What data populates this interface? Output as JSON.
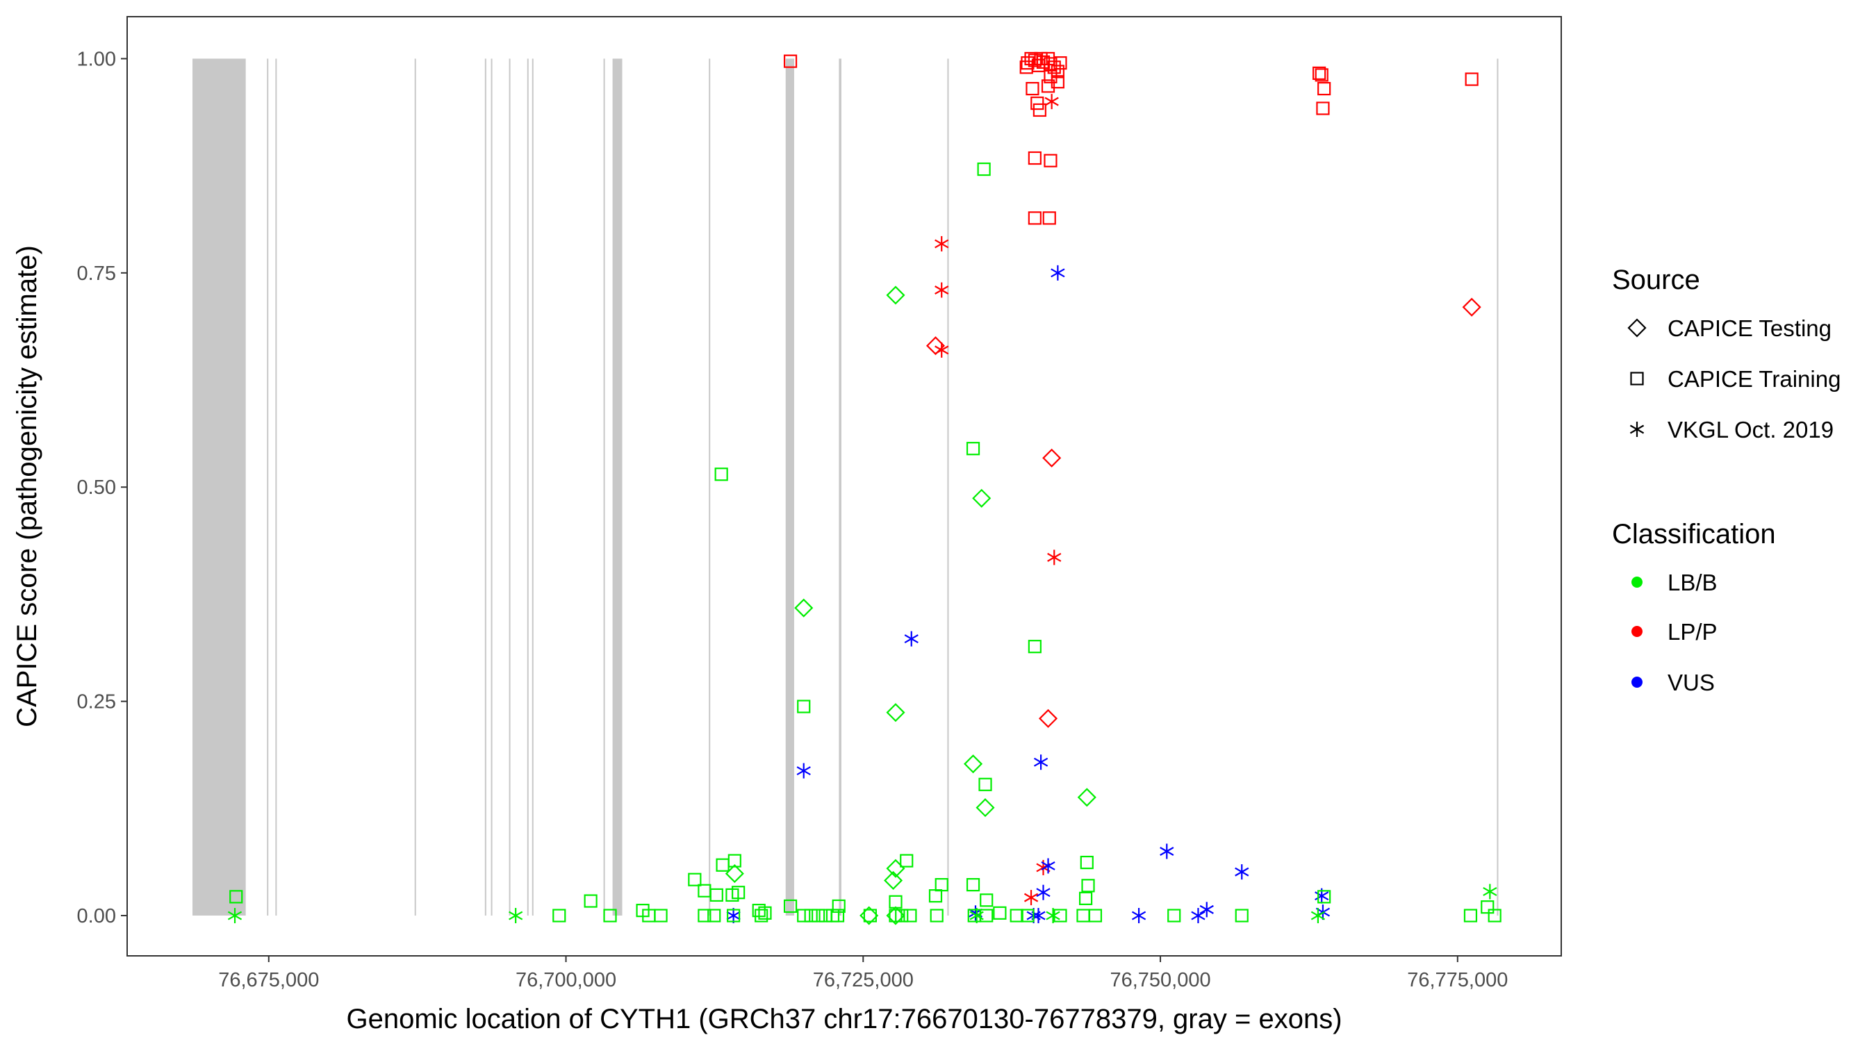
{
  "chart_data": {
    "type": "scatter",
    "title": "",
    "xlabel": "Genomic location of CYTH1 (GRCh37 chr17:76670130-76778379, gray = exons)",
    "ylabel": "CAPICE score (pathogenicity estimate)",
    "xlim": [
      76663090,
      76783720
    ],
    "ylim": [
      -0.047,
      1.049
    ],
    "grid": false,
    "x_ticks": [
      76675000,
      76700000,
      76725000,
      76750000,
      76775000
    ],
    "x_tick_labels": [
      "76,675,000",
      "76,700,000",
      "76,725,000",
      "76,750,000",
      "76,775,000"
    ],
    "y_ticks": [
      0,
      0.25,
      0.5,
      0.75,
      1.0
    ],
    "y_tick_labels": [
      "0.00",
      "0.25",
      "0.50",
      "0.75",
      "1.00"
    ],
    "exons": [
      [
        76668585,
        76673065
      ],
      [
        76674850,
        76674950
      ],
      [
        76675560,
        76675660
      ],
      [
        76687270,
        76687370
      ],
      [
        76693180,
        76693280
      ],
      [
        76693690,
        76693790
      ],
      [
        76695210,
        76695310
      ],
      [
        76696740,
        76696840
      ],
      [
        76697150,
        76697250
      ],
      [
        76703160,
        76703260
      ],
      [
        76703920,
        76704734
      ],
      [
        76712020,
        76712120
      ],
      [
        76718481,
        76719194
      ],
      [
        76722962,
        76723166
      ],
      [
        76732080,
        76732180
      ],
      [
        76778310,
        76778410
      ]
    ],
    "exon_color": "#c8c8c8",
    "legend": {
      "placement": "right",
      "source_title": "Source",
      "source_items": [
        {
          "key": "T",
          "label": "CAPICE Testing",
          "shape": "diamond"
        },
        {
          "key": "R",
          "label": "CAPICE Training",
          "shape": "square"
        },
        {
          "key": "V",
          "label": "VKGL Oct. 2019",
          "shape": "asterisk"
        }
      ],
      "class_title": "Classification",
      "class_items": [
        {
          "key": "LB/B",
          "label": "LB/B",
          "color": "#00ee00"
        },
        {
          "key": "LP/P",
          "label": "LP/P",
          "color": "#ff0000"
        },
        {
          "key": "VUS",
          "label": "VUS",
          "color": "#0000ff"
        }
      ]
    },
    "points": [
      [
        76718880,
        0.997,
        "R",
        "LP/P"
      ],
      [
        76738730,
        0.99,
        "R",
        "LP/P"
      ],
      [
        76738830,
        0.995,
        "R",
        "LP/P"
      ],
      [
        76739130,
        1.0,
        "R",
        "LP/P"
      ],
      [
        76739440,
        0.998,
        "R",
        "LP/P"
      ],
      [
        76739740,
        0.992,
        "R",
        "LP/P"
      ],
      [
        76739950,
        1.0,
        "R",
        "LP/P"
      ],
      [
        76740150,
        0.996,
        "R",
        "LP/P"
      ],
      [
        76740560,
        1.0,
        "R",
        "LP/P"
      ],
      [
        76740760,
        0.994,
        "R",
        "LP/P"
      ],
      [
        76741070,
        0.99,
        "R",
        "LP/P"
      ],
      [
        76741370,
        0.985,
        "R",
        "LP/P"
      ],
      [
        76741580,
        0.995,
        "R",
        "LP/P"
      ],
      [
        76739240,
        0.965,
        "R",
        "LP/P"
      ],
      [
        76739640,
        0.948,
        "R",
        "LP/P"
      ],
      [
        76739850,
        0.94,
        "R",
        "LP/P"
      ],
      [
        76740560,
        0.968,
        "R",
        "LP/P"
      ],
      [
        76740760,
        0.979,
        "R",
        "LP/P"
      ],
      [
        76741370,
        0.973,
        "R",
        "LP/P"
      ],
      [
        76763360,
        0.983,
        "R",
        "LP/P"
      ],
      [
        76763570,
        0.981,
        "R",
        "LP/P"
      ],
      [
        76763770,
        0.965,
        "R",
        "LP/P"
      ],
      [
        76763670,
        0.942,
        "R",
        "LP/P"
      ],
      [
        76776190,
        0.976,
        "R",
        "LP/P"
      ],
      [
        76739440,
        0.884,
        "R",
        "LP/P"
      ],
      [
        76740760,
        0.881,
        "R",
        "LP/P"
      ],
      [
        76739440,
        0.814,
        "R",
        "LP/P"
      ],
      [
        76740660,
        0.814,
        "R",
        "LP/P"
      ],
      [
        76740860,
        0.95,
        "V",
        "LP/P"
      ],
      [
        76731600,
        0.784,
        "V",
        "LP/P"
      ],
      [
        76731600,
        0.73,
        "V",
        "LP/P"
      ],
      [
        76731600,
        0.66,
        "V",
        "LP/P"
      ],
      [
        76741070,
        0.418,
        "V",
        "LP/P"
      ],
      [
        76740150,
        0.056,
        "V",
        "LP/P"
      ],
      [
        76739130,
        0.021,
        "V",
        "LP/P"
      ],
      [
        76731090,
        0.665,
        "T",
        "LP/P"
      ],
      [
        76740860,
        0.534,
        "T",
        "LP/P"
      ],
      [
        76776190,
        0.71,
        "T",
        "LP/P"
      ],
      [
        76740560,
        0.23,
        "T",
        "LP/P"
      ],
      [
        76741370,
        0.75,
        "V",
        "VUS"
      ],
      [
        76729060,
        0.323,
        "V",
        "VUS"
      ],
      [
        76720000,
        0.169,
        "V",
        "VUS"
      ],
      [
        76739950,
        0.179,
        "V",
        "VUS"
      ],
      [
        76740560,
        0.058,
        "V",
        "VUS"
      ],
      [
        76750540,
        0.075,
        "V",
        "VUS"
      ],
      [
        76756850,
        0.051,
        "V",
        "VUS"
      ],
      [
        76740150,
        0.027,
        "V",
        "VUS"
      ],
      [
        76763570,
        0.023,
        "V",
        "VUS"
      ],
      [
        76714090,
        0.0,
        "V",
        "VUS"
      ],
      [
        76734450,
        0.003,
        "V",
        "VUS"
      ],
      [
        76739340,
        0.0,
        "V",
        "VUS"
      ],
      [
        76739740,
        0.0,
        "V",
        "VUS"
      ],
      [
        76748190,
        0.0,
        "V",
        "VUS"
      ],
      [
        76753180,
        0.0,
        "V",
        "VUS"
      ],
      [
        76753900,
        0.007,
        "V",
        "VUS"
      ],
      [
        76763670,
        0.004,
        "V",
        "VUS"
      ],
      [
        76735160,
        0.871,
        "R",
        "LB/B"
      ],
      [
        76734250,
        0.545,
        "R",
        "LB/B"
      ],
      [
        76713070,
        0.515,
        "R",
        "LB/B"
      ],
      [
        76739440,
        0.314,
        "R",
        "LB/B"
      ],
      [
        76720000,
        0.244,
        "R",
        "LB/B"
      ],
      [
        76735270,
        0.153,
        "R",
        "LB/B"
      ],
      [
        76728650,
        0.064,
        "R",
        "LB/B"
      ],
      [
        76714190,
        0.064,
        "R",
        "LB/B"
      ],
      [
        76713180,
        0.059,
        "R",
        "LB/B"
      ],
      [
        76743820,
        0.062,
        "R",
        "LB/B"
      ],
      [
        76710830,
        0.042,
        "R",
        "LB/B"
      ],
      [
        76711650,
        0.029,
        "R",
        "LB/B"
      ],
      [
        76712670,
        0.024,
        "R",
        "LB/B"
      ],
      [
        76713990,
        0.024,
        "R",
        "LB/B"
      ],
      [
        76714500,
        0.027,
        "R",
        "LB/B"
      ],
      [
        76731600,
        0.036,
        "R",
        "LB/B"
      ],
      [
        76734250,
        0.036,
        "R",
        "LB/B"
      ],
      [
        76743920,
        0.035,
        "R",
        "LB/B"
      ],
      [
        76672250,
        0.022,
        "R",
        "LB/B"
      ],
      [
        76702080,
        0.017,
        "R",
        "LB/B"
      ],
      [
        76706460,
        0.006,
        "R",
        "LB/B"
      ],
      [
        76722950,
        0.011,
        "R",
        "LB/B"
      ],
      [
        76718880,
        0.011,
        "R",
        "LB/B"
      ],
      [
        76716230,
        0.006,
        "R",
        "LB/B"
      ],
      [
        76716740,
        0.003,
        "R",
        "LB/B"
      ],
      [
        76727730,
        0.016,
        "R",
        "LB/B"
      ],
      [
        76731090,
        0.023,
        "R",
        "LB/B"
      ],
      [
        76735370,
        0.018,
        "R",
        "LB/B"
      ],
      [
        76743720,
        0.02,
        "R",
        "LB/B"
      ],
      [
        76699430,
        0.0,
        "R",
        "LB/B"
      ],
      [
        76703710,
        0.0,
        "R",
        "LB/B"
      ],
      [
        76706970,
        0.0,
        "R",
        "LB/B"
      ],
      [
        76707980,
        0.0,
        "R",
        "LB/B"
      ],
      [
        76711650,
        0.0,
        "R",
        "LB/B"
      ],
      [
        76712460,
        0.0,
        "R",
        "LB/B"
      ],
      [
        76714090,
        0.0,
        "R",
        "LB/B"
      ],
      [
        76716430,
        0.0,
        "R",
        "LB/B"
      ],
      [
        76720000,
        0.0,
        "R",
        "LB/B"
      ],
      [
        76720610,
        0.0,
        "R",
        "LB/B"
      ],
      [
        76721220,
        0.0,
        "R",
        "LB/B"
      ],
      [
        76721830,
        0.0,
        "R",
        "LB/B"
      ],
      [
        76722440,
        0.0,
        "R",
        "LB/B"
      ],
      [
        76722850,
        0.0,
        "R",
        "LB/B"
      ],
      [
        76725590,
        0.0,
        "R",
        "LB/B"
      ],
      [
        76727730,
        0.0,
        "R",
        "LB/B"
      ],
      [
        76728240,
        0.0,
        "R",
        "LB/B"
      ],
      [
        76728950,
        0.0,
        "R",
        "LB/B"
      ],
      [
        76731190,
        0.0,
        "R",
        "LB/B"
      ],
      [
        76734350,
        0.0,
        "R",
        "LB/B"
      ],
      [
        76735370,
        0.0,
        "R",
        "LB/B"
      ],
      [
        76736490,
        0.003,
        "R",
        "LB/B"
      ],
      [
        76737910,
        0.0,
        "R",
        "LB/B"
      ],
      [
        76738830,
        0.0,
        "R",
        "LB/B"
      ],
      [
        76741580,
        0.0,
        "R",
        "LB/B"
      ],
      [
        76743510,
        0.0,
        "R",
        "LB/B"
      ],
      [
        76744530,
        0.0,
        "R",
        "LB/B"
      ],
      [
        76751150,
        0.0,
        "R",
        "LB/B"
      ],
      [
        76756850,
        0.0,
        "R",
        "LB/B"
      ],
      [
        76776090,
        0.0,
        "R",
        "LB/B"
      ],
      [
        76777510,
        0.01,
        "R",
        "LB/B"
      ],
      [
        76778120,
        0.0,
        "R",
        "LB/B"
      ],
      [
        76763770,
        0.022,
        "R",
        "LB/B"
      ],
      [
        76727730,
        0.724,
        "T",
        "LB/B"
      ],
      [
        76734960,
        0.487,
        "T",
        "LB/B"
      ],
      [
        76720000,
        0.359,
        "T",
        "LB/B"
      ],
      [
        76727730,
        0.237,
        "T",
        "LB/B"
      ],
      [
        76734250,
        0.177,
        "T",
        "LB/B"
      ],
      [
        76735270,
        0.126,
        "T",
        "LB/B"
      ],
      [
        76743820,
        0.138,
        "T",
        "LB/B"
      ],
      [
        76714190,
        0.049,
        "T",
        "LB/B"
      ],
      [
        76727730,
        0.055,
        "T",
        "LB/B"
      ],
      [
        76727530,
        0.041,
        "T",
        "LB/B"
      ],
      [
        76725490,
        0.0,
        "T",
        "LB/B"
      ],
      [
        76727730,
        0.0,
        "T",
        "LB/B"
      ],
      [
        76672150,
        0.0,
        "V",
        "LB/B"
      ],
      [
        76695770,
        0.0,
        "V",
        "LB/B"
      ],
      [
        76777720,
        0.028,
        "V",
        "LB/B"
      ],
      [
        76763260,
        0.0,
        "V",
        "LB/B"
      ],
      [
        76734550,
        0.0,
        "V",
        "LB/B"
      ],
      [
        76740970,
        0.0,
        "V",
        "LB/B"
      ]
    ]
  }
}
